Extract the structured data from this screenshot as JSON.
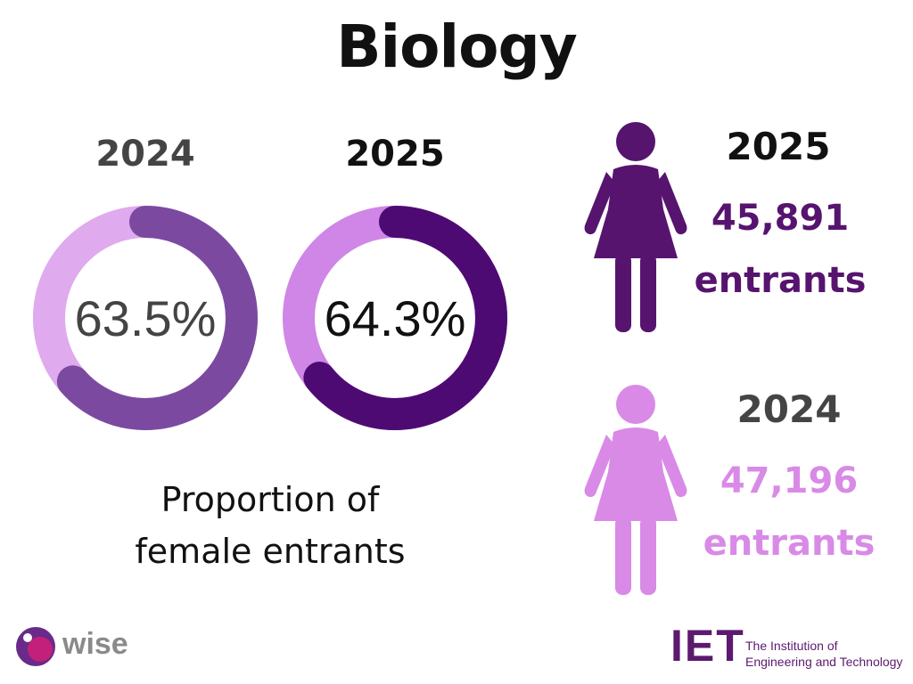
{
  "title": "Biology",
  "chart_data": [
    {
      "type": "pie",
      "series": [
        {
          "name": "2024",
          "value": 63.5,
          "label": "63.5%",
          "track_color": "#dfaaee",
          "fill_color": "#7b4aa0",
          "text_color": "#444444"
        },
        {
          "name": "2025",
          "value": 64.3,
          "label": "64.3%",
          "track_color": "#cf86e6",
          "fill_color": "#4e0a73",
          "text_color": "#111111"
        }
      ],
      "caption": "Proportion of female entrants"
    },
    {
      "type": "table",
      "rows": [
        {
          "year": "2025",
          "count": "45,891",
          "unit": "entrants",
          "color": "#56146f",
          "icon": "woman-figure-icon"
        },
        {
          "year": "2024",
          "count": "47,196",
          "unit": "entrants",
          "color": "#d98ae6",
          "icon": "woman-figure-icon"
        }
      ]
    }
  ],
  "captions": {
    "line1": "Proportion of",
    "line2": "female entrants"
  },
  "logos": {
    "wise": "wise",
    "iet_mark": "IET",
    "iet_line1": "The Institution of",
    "iet_line2": "Engineering and Technology"
  },
  "colors": {
    "year_2024": "#444444",
    "year_2025": "#111111"
  }
}
